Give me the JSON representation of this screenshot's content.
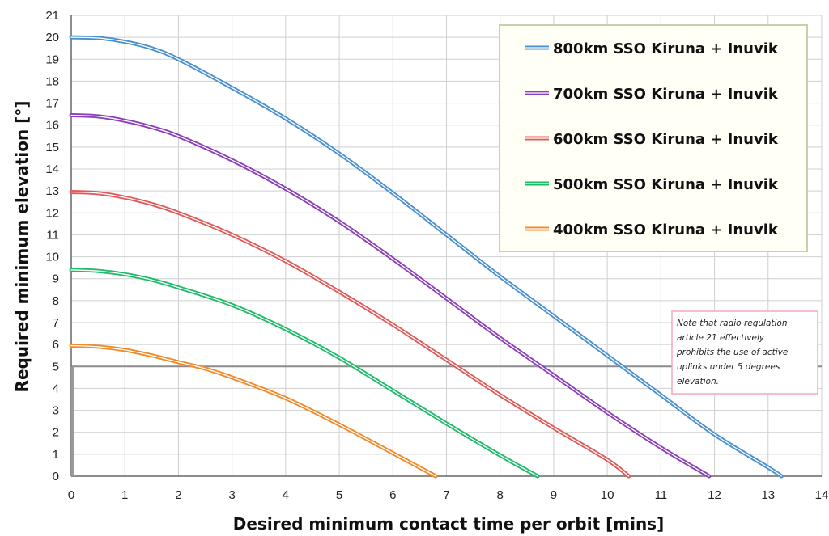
{
  "chart_data": {
    "type": "line",
    "title": "",
    "xlabel": "Desired minimum contact time per orbit [mins]",
    "ylabel": "Required minimum elevation [°]",
    "xlim": [
      0,
      14
    ],
    "ylim": [
      0,
      21
    ],
    "x_ticks": [
      "0",
      "1",
      "2",
      "3",
      "4",
      "5",
      "6",
      "7",
      "8",
      "9",
      "10",
      "11",
      "12",
      "13",
      "14"
    ],
    "y_ticks": [
      "0",
      "1",
      "2",
      "3",
      "4",
      "5",
      "6",
      "7",
      "8",
      "9",
      "10",
      "11",
      "12",
      "13",
      "14",
      "15",
      "16",
      "17",
      "18",
      "19",
      "20",
      "21"
    ],
    "grid": true,
    "legend_position": "top-right",
    "reference_line": {
      "y": 5,
      "color": "#8c8c8c"
    },
    "series": [
      {
        "name": "800km SSO Kiruna + Inuvik",
        "color": "#4a8fd0",
        "x": [
          0,
          0.5,
          1,
          1.5,
          2,
          3,
          4,
          5,
          6,
          7,
          8,
          9,
          10,
          11,
          12,
          13,
          13.25
        ],
        "y": [
          20,
          19.97,
          19.8,
          19.5,
          19,
          17.7,
          16.3,
          14.7,
          12.9,
          11.0,
          9.1,
          7.3,
          5.5,
          3.7,
          1.9,
          0.4,
          0
        ]
      },
      {
        "name": "700km SSO Kiruna + Inuvik",
        "color": "#8a3fb8",
        "x": [
          0,
          0.5,
          1,
          1.5,
          2,
          3,
          4,
          5,
          6,
          7,
          8,
          9,
          10,
          11,
          11.9
        ],
        "y": [
          16.45,
          16.4,
          16.2,
          15.9,
          15.5,
          14.4,
          13.1,
          11.6,
          9.9,
          8.1,
          6.3,
          4.6,
          2.9,
          1.3,
          0
        ]
      },
      {
        "name": "600km SSO Kiruna + Inuvik",
        "color": "#e05a5a",
        "x": [
          0,
          0.5,
          1,
          1.5,
          2,
          3,
          4,
          5,
          6,
          7,
          8,
          9,
          10,
          10.4
        ],
        "y": [
          12.95,
          12.9,
          12.7,
          12.4,
          12.0,
          11.0,
          9.8,
          8.4,
          6.9,
          5.3,
          3.7,
          2.2,
          0.75,
          0
        ]
      },
      {
        "name": "500km SSO Kiruna + Inuvik",
        "color": "#1fba6a",
        "x": [
          0,
          0.5,
          1,
          1.5,
          2,
          3,
          4,
          5,
          6,
          7,
          8,
          8.7
        ],
        "y": [
          9.4,
          9.35,
          9.2,
          8.95,
          8.6,
          7.8,
          6.7,
          5.4,
          3.9,
          2.4,
          0.95,
          0
        ]
      },
      {
        "name": "400km SSO Kiruna + Inuvik",
        "color": "#f08a2a",
        "x": [
          0,
          0.5,
          1,
          1.5,
          2,
          2.5,
          3,
          4,
          5,
          6,
          6.8
        ],
        "y": [
          5.95,
          5.9,
          5.75,
          5.5,
          5.2,
          4.9,
          4.5,
          3.55,
          2.35,
          1.05,
          0
        ]
      }
    ],
    "annotation": {
      "lines": [
        "Note that radio regulation",
        "article 21 effectively",
        "prohibits the use of active",
        "uplinks under 5 degrees",
        "elevation."
      ]
    }
  }
}
